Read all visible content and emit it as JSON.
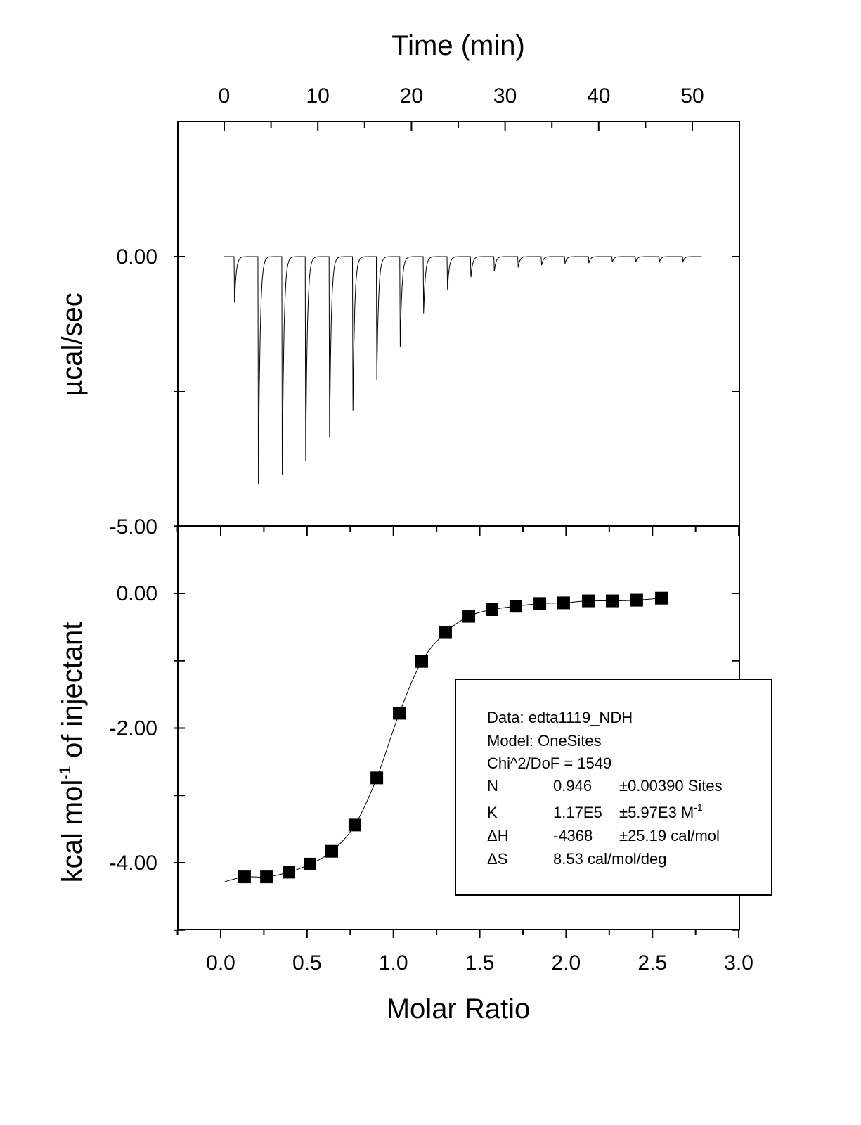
{
  "chart_data": [
    {
      "type": "line",
      "panel": "raw-thermogram",
      "xlabel": "Time (min)",
      "ylabel": "µcal/sec",
      "xlim": [
        -5,
        55
      ],
      "ylim": [
        -5.0,
        2.5
      ],
      "xticks": [
        0,
        10,
        20,
        30,
        40,
        50
      ],
      "xtick_labels": [
        "0",
        "10",
        "20",
        "30",
        "40",
        "50"
      ],
      "yticks": [
        0.0,
        -5.0
      ],
      "ytick_labels": [
        "0.00",
        "-5.00"
      ],
      "baseline_range": [
        0,
        51
      ],
      "injection_times": [
        1.05,
        3.6,
        6.15,
        8.65,
        11.2,
        13.7,
        16.25,
        18.75,
        21.25,
        23.8,
        26.3,
        28.8,
        31.35,
        33.85,
        36.35,
        38.9,
        41.4,
        43.9,
        46.45,
        48.95
      ],
      "peak_values": [
        -0.85,
        -4.22,
        -4.04,
        -3.78,
        -3.35,
        -2.85,
        -2.29,
        -1.67,
        -1.05,
        -0.61,
        -0.38,
        -0.27,
        -0.2,
        -0.16,
        -0.13,
        -0.12,
        -0.1,
        -0.1,
        -0.09,
        -0.09
      ]
    },
    {
      "type": "scatter",
      "panel": "binding-isotherm",
      "xlabel": "Molar Ratio",
      "ylabel": "kcal mol",
      "ylabel_sup": "-1",
      "ylabel_suffix": " of injectant",
      "xlim": [
        -0.25,
        3.0
      ],
      "ylim": [
        -5.0,
        1.0
      ],
      "xticks": [
        0.0,
        0.5,
        1.0,
        1.5,
        2.0,
        2.5,
        3.0
      ],
      "xtick_labels": [
        "0.0",
        "0.5",
        "1.0",
        "1.5",
        "2.0",
        "2.5",
        "3.0"
      ],
      "yticks": [
        0.0,
        -2.0,
        -4.0
      ],
      "ytick_labels": [
        "0.00",
        "-2.00",
        "-4.00"
      ],
      "x": [
        0.138,
        0.265,
        0.395,
        0.517,
        0.643,
        0.777,
        0.904,
        1.034,
        1.164,
        1.302,
        1.437,
        1.571,
        1.709,
        1.848,
        1.986,
        2.129,
        2.267,
        2.409,
        2.552
      ],
      "y": [
        -4.21,
        -4.21,
        -4.14,
        -4.02,
        -3.83,
        -3.44,
        -2.74,
        -1.78,
        -1.01,
        -0.58,
        -0.34,
        -0.24,
        -0.19,
        -0.15,
        -0.14,
        -0.11,
        -0.11,
        -0.1,
        -0.07
      ],
      "fit_start": [
        0.024,
        -4.28
      ],
      "legend": {
        "placement": "bottom-right",
        "lines": [
          [
            "Data: edta1119_NDH"
          ],
          [
            "Model: OneSites"
          ],
          [
            "Chi^2/DoF = 1549"
          ],
          [
            "N",
            "0.946",
            "±0.00390 Sites"
          ],
          [
            "K",
            "1.17E5",
            "±5.97E3 M",
            "-1"
          ],
          [
            "ΔH",
            "-4368",
            "±25.19 cal/mol"
          ],
          [
            "ΔS",
            "8.53 cal/mol/deg"
          ]
        ]
      }
    }
  ]
}
